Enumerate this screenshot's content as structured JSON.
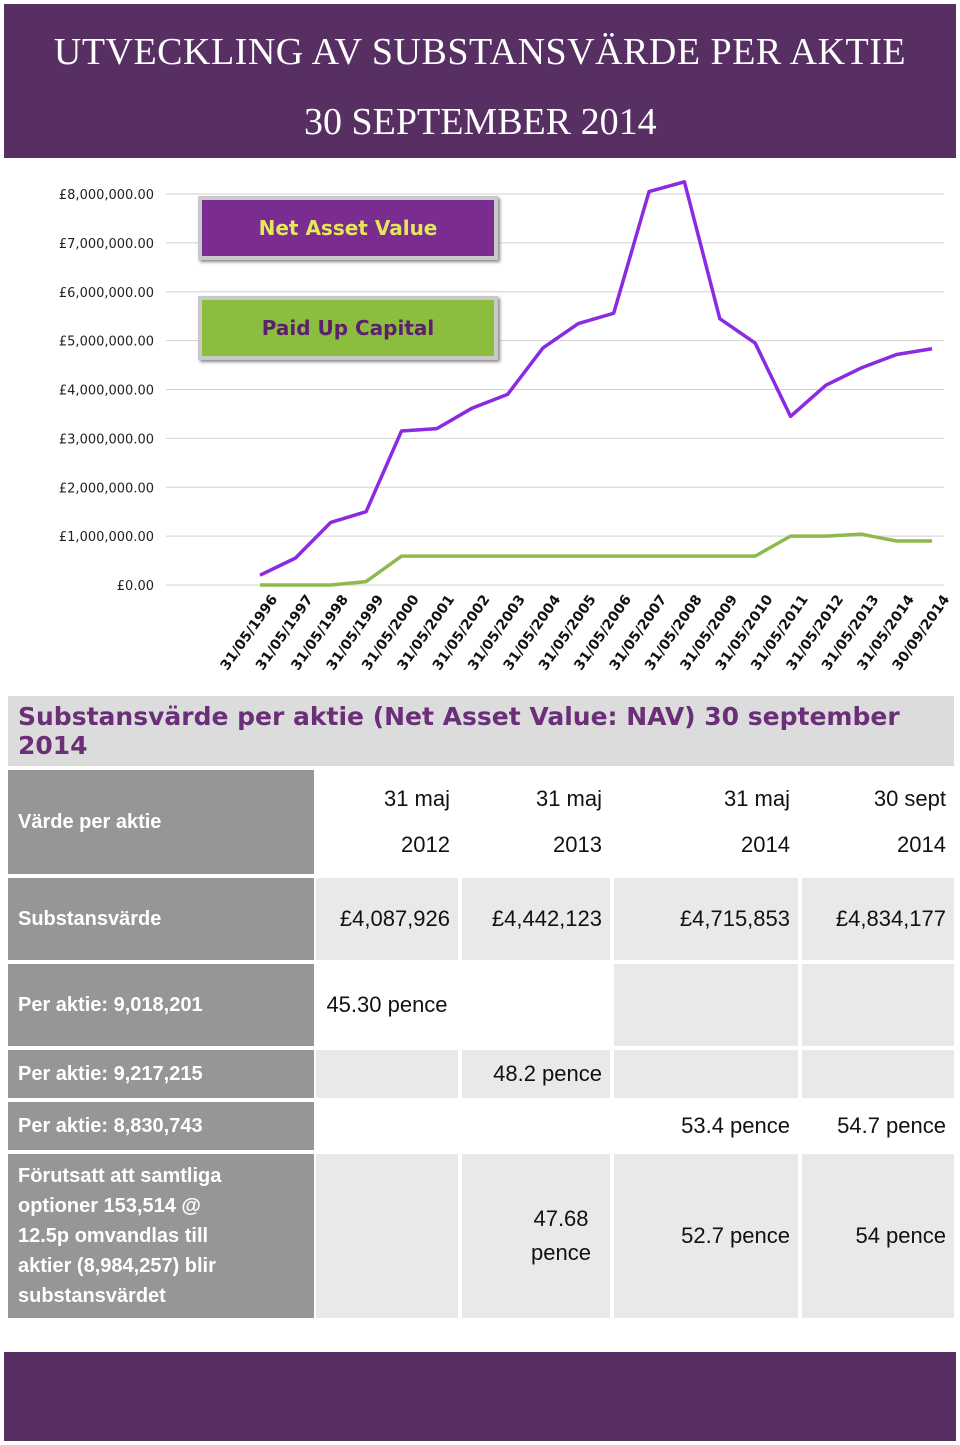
{
  "header": {
    "title_line1": "UTVECKLING AV SUBSTANSVÄRDE PER AKTIE",
    "title_line2": "30 SEPTEMBER 2014"
  },
  "chart_data": {
    "type": "line",
    "x": [
      "31/05/1996",
      "31/05/1997",
      "31/05/1998",
      "31/05/1999",
      "31/05/2000",
      "31/05/2001",
      "31/05/2002",
      "31/05/2003",
      "31/05/2004",
      "31/05/2005",
      "31/05/2006",
      "31/05/2007",
      "31/05/2008",
      "31/05/2009",
      "31/05/2010",
      "31/05/2011",
      "31/05/2012",
      "31/05/2013",
      "31/05/2014",
      "30/09/2014"
    ],
    "series": [
      {
        "name": "Net Asset Value",
        "color": "#8a2be2",
        "values": [
          200000,
          550000,
          1280000,
          1500000,
          3150000,
          3200000,
          3620000,
          3900000,
          4850000,
          5350000,
          5560000,
          8050000,
          8250000,
          5450000,
          4950000,
          3450000,
          4087926,
          4442123,
          4715853,
          4834177
        ]
      },
      {
        "name": "Paid Up Capital",
        "color": "#8dbb4b",
        "values": [
          0,
          0,
          0,
          70000,
          590000,
          590000,
          590000,
          590000,
          590000,
          590000,
          590000,
          590000,
          590000,
          590000,
          590000,
          1000000,
          1000000,
          1040000,
          900000,
          900000
        ]
      }
    ],
    "ylim": [
      0,
      8000000
    ],
    "yticks": [
      "£0.00",
      "£1,000,000.00",
      "£2,000,000.00",
      "£3,000,000.00",
      "£4,000,000.00",
      "£5,000,000.00",
      "£6,000,000.00",
      "£7,000,000.00",
      "£8,000,000.00"
    ],
    "legend": "top-left"
  },
  "table": {
    "title": "Substansvärde per aktie (Net Asset Value: NAV) 30 september 2014",
    "header_label": "Värde per aktie",
    "columns": [
      {
        "line1": "31 maj",
        "line2": "2012"
      },
      {
        "line1": "31 maj",
        "line2": "2013"
      },
      {
        "line1": "31 maj",
        "line2": "2014"
      },
      {
        "line1": "30 sept",
        "line2": "2014"
      }
    ],
    "row_nav": {
      "label": "Substansvärde",
      "values": [
        "£4,087,926",
        "£4,442,123",
        "£4,715,853",
        "£4,834,177"
      ]
    },
    "row_p1": {
      "label": "Per aktie: 9,018,201",
      "value": "45.30 pence"
    },
    "row_p2": {
      "label": "Per aktie: 9,217,215",
      "value": "48.2 pence"
    },
    "row_p3": {
      "label": "Per aktie: 8,830,743",
      "values": [
        "53.4 pence",
        "54.7 pence"
      ]
    },
    "row_diluted": {
      "label": "Förutsatt att samtliga optioner 153,514  @ 12.5p omvandlas till aktier (8,984,257) blir substansvärdet",
      "values": [
        "47.68 pence",
        "52.7 pence",
        "54 pence"
      ]
    }
  }
}
